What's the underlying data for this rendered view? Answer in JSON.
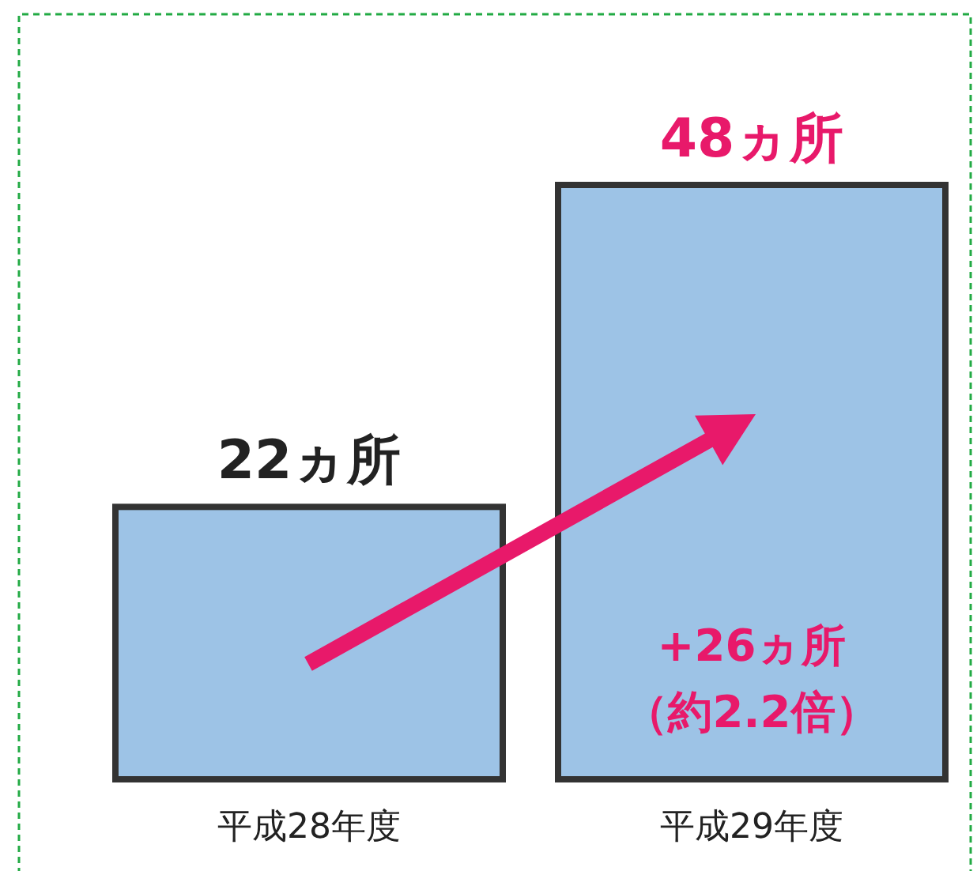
{
  "chart_data": {
    "type": "bar",
    "categories": [
      "平成28年度",
      "平成29年度"
    ],
    "values": [
      22,
      48
    ],
    "color": "#9dc3e6",
    "value_labels": [
      "22ヵ所",
      "48ヵ所"
    ],
    "annotations": [
      "+26ヵ所",
      "（約2.2倍）"
    ]
  }
}
